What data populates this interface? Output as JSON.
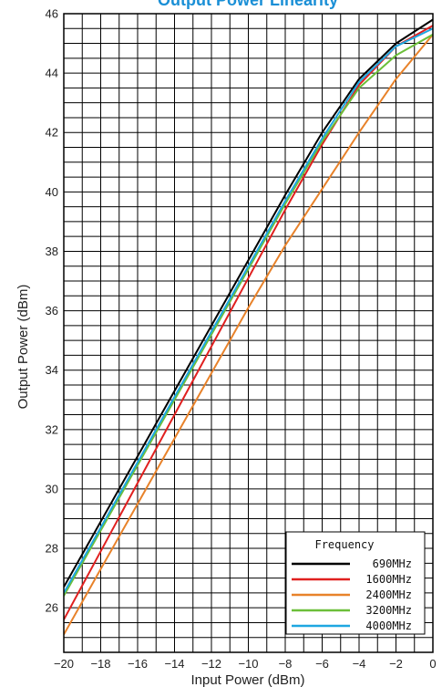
{
  "chart_data": {
    "type": "line",
    "title": "Output Power Linearity",
    "xlabel": "Input Power (dBm)",
    "ylabel": "Output Power (dBm)",
    "xlim": [
      -20,
      0
    ],
    "ylim": [
      24.5,
      46
    ],
    "x_ticks": [
      "−20",
      "−18",
      "−16",
      "−14",
      "−12",
      "−10",
      "−8",
      "−6",
      "−4",
      "−2",
      "0"
    ],
    "y_ticks": [
      "26",
      "28",
      "30",
      "32",
      "34",
      "36",
      "38",
      "40",
      "42",
      "44",
      "46"
    ],
    "grid": true,
    "legend": {
      "title": "Frequency",
      "position": "bottom-right"
    },
    "series": [
      {
        "name": "690MHz",
        "color": "#000000",
        "x": [
          -20,
          -18,
          -16,
          -14,
          -12,
          -10,
          -8,
          -6,
          -4,
          -2,
          0
        ],
        "y": [
          26.7,
          28.9,
          31.1,
          33.3,
          35.5,
          37.7,
          39.9,
          42.0,
          43.8,
          45.0,
          45.8
        ]
      },
      {
        "name": "1600MHz",
        "color": "#e0201f",
        "x": [
          -20,
          -18,
          -16,
          -14,
          -12,
          -10,
          -8,
          -6,
          -4,
          -2,
          0
        ],
        "y": [
          25.6,
          27.9,
          30.2,
          32.5,
          34.8,
          37.1,
          39.4,
          41.6,
          43.6,
          44.9,
          45.6
        ]
      },
      {
        "name": "2400MHz",
        "color": "#e8822a",
        "x": [
          -20,
          -18,
          -16,
          -14,
          -12,
          -10,
          -8,
          -6,
          -4,
          -2,
          0
        ],
        "y": [
          25.1,
          27.3,
          29.5,
          31.7,
          33.9,
          36.1,
          38.2,
          40.1,
          42.0,
          43.8,
          45.3
        ]
      },
      {
        "name": "3200MHz",
        "color": "#6cbf3a",
        "x": [
          -20,
          -18,
          -16,
          -14,
          -12,
          -10,
          -8,
          -6,
          -4,
          -2,
          0
        ],
        "y": [
          26.4,
          28.6,
          30.8,
          33.0,
          35.2,
          37.4,
          39.6,
          41.7,
          43.5,
          44.6,
          45.3
        ]
      },
      {
        "name": "4000MHz",
        "color": "#1ea7e1",
        "x": [
          -20,
          -18,
          -16,
          -14,
          -12,
          -10,
          -8,
          -6,
          -4,
          -2,
          0
        ],
        "y": [
          26.5,
          28.7,
          30.9,
          33.1,
          35.3,
          37.5,
          39.7,
          41.8,
          43.7,
          44.9,
          45.5
        ]
      }
    ]
  }
}
